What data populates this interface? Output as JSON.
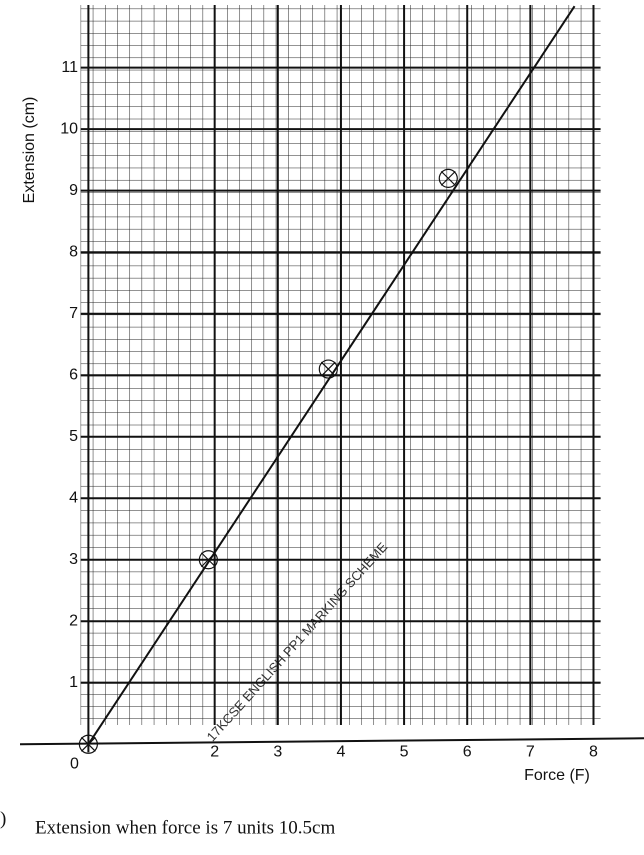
{
  "chart_data": {
    "type": "scatter",
    "x_label": "Force (F)",
    "y_label": "Extension (cm)",
    "xlim": [
      -1.4,
      8.8
    ],
    "ylim": [
      -1.8,
      12.1
    ],
    "xticks": [
      0,
      2,
      3,
      4,
      5,
      6,
      7,
      8
    ],
    "yticks": [
      1,
      2,
      3,
      4,
      5,
      6,
      7,
      8,
      9,
      10,
      11
    ],
    "grid": true,
    "series": [
      {
        "color": "#111111",
        "marker": "circle-cross",
        "x": [
          0,
          1.9,
          3.8,
          5.7
        ],
        "values": [
          0,
          3,
          6.1,
          9.2
        ]
      },
      {
        "color": "#111111",
        "line": true,
        "x": [
          0,
          7.7
        ],
        "values": [
          0,
          12
        ]
      }
    ],
    "annotation": "Extension when force is 7 units 10.5cm",
    "watermark": "17KCSE ENGLISH PP1 MARKING SCHEME",
    "margin_mark": ")"
  }
}
